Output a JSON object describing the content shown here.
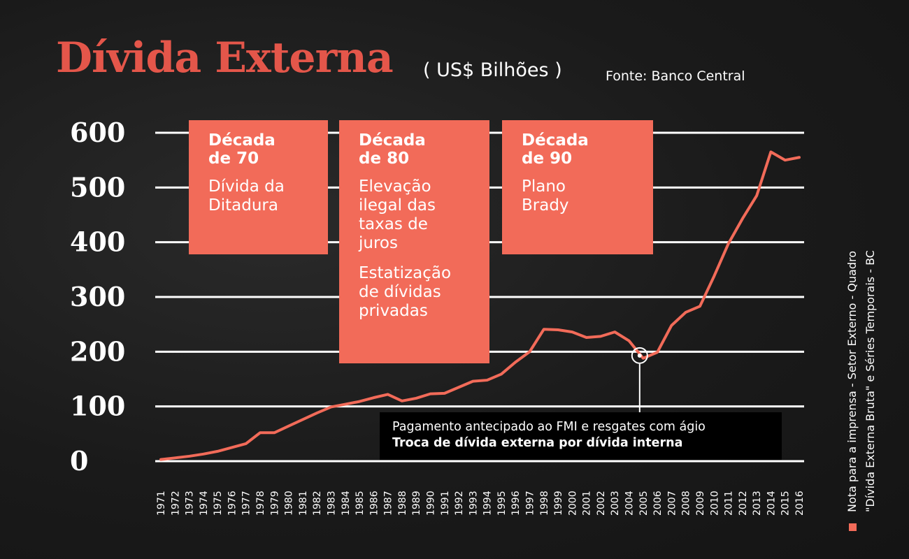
{
  "header": {
    "title": "Dívida Externa",
    "unit": "( US$ Bilhões )",
    "source": "Fonte: Banco Central"
  },
  "boxes": [
    {
      "heading": "Década\nde 70",
      "body": "Dívida da\nDitadura",
      "body2": ""
    },
    {
      "heading": "Década\nde 80",
      "body": "Elevação\nilegal das\ntaxas de\njuros",
      "body2": "Estatização\nde dívidas\nprivadas"
    },
    {
      "heading": "Década\nde 90",
      "body": "Plano\nBrady",
      "body2": ""
    }
  ],
  "annotation": {
    "line1": "Pagamento antecipado ao FMI e resgates com ágio",
    "line2": "Troca de dívida externa por dívida interna"
  },
  "side_note": {
    "line1": "Nota para a imprensa - Setor Externo - Quadro",
    "line2": "\"Dívida Externa Bruta\" e Séries Temporais - BC"
  },
  "colors": {
    "accent": "#f26b59",
    "title": "#e4564a",
    "background": "#1a1a1a"
  },
  "chart_data": {
    "type": "line",
    "title": "Dívida Externa",
    "ylim": [
      0,
      600
    ],
    "yticks": [
      0,
      100,
      200,
      300,
      400,
      500,
      600
    ],
    "grid": true,
    "x": [
      "1971",
      "1972",
      "1973",
      "1974",
      "1975",
      "1976",
      "1977",
      "1978",
      "1979",
      "1980",
      "1981",
      "1982",
      "1983",
      "1984",
      "1985",
      "1986",
      "1987",
      "1988",
      "1989",
      "1990",
      "1991",
      "1992",
      "1993",
      "1994",
      "1995",
      "1996",
      "1997",
      "1998",
      "1999",
      "2000",
      "2001",
      "2002",
      "2003",
      "2004",
      "2005",
      "2006",
      "2007",
      "2008",
      "2009",
      "2010",
      "2011",
      "2012",
      "2013",
      "2014",
      "2015",
      "2016"
    ],
    "series": [
      {
        "values": [
          3,
          6,
          9,
          13,
          18,
          25,
          32,
          52,
          52,
          64,
          76,
          88,
          99,
          104,
          109,
          116,
          122,
          110,
          115,
          123,
          124,
          135,
          146,
          148,
          159,
          181,
          200,
          241,
          240,
          236,
          226,
          228,
          236,
          220,
          188,
          199,
          248,
          272,
          283,
          338,
          397,
          443,
          485,
          565,
          550,
          555
        ]
      }
    ],
    "annotation_point": {
      "x": "2005",
      "y": 193
    }
  }
}
